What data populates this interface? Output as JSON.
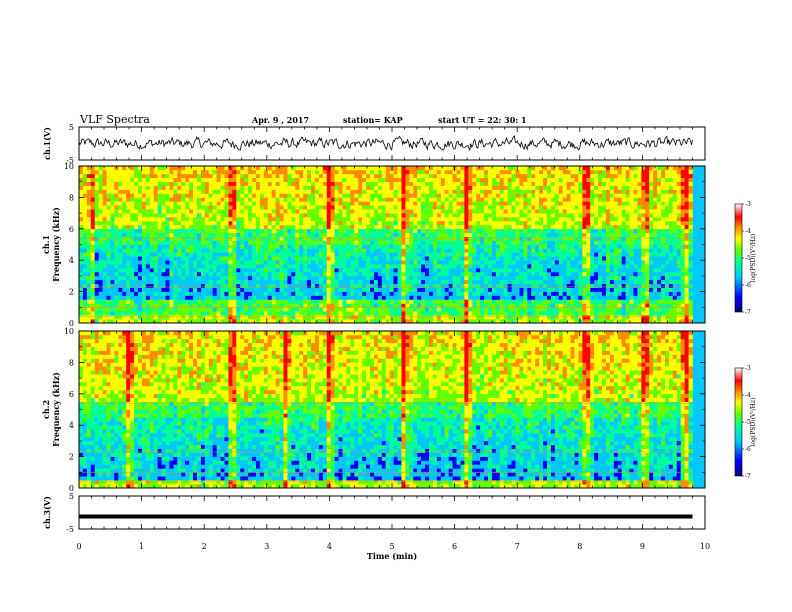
{
  "header": {
    "title": "VLF Spectra",
    "date": "Apr. 9  , 2017",
    "station": "station= KAP",
    "start": "start  UT =   22: 30: 1"
  },
  "colors": {
    "spectrogram_scale": [
      "#00007f",
      "#0000ff",
      "#00c8ff",
      "#00ff96",
      "#64ff00",
      "#ffff00",
      "#ff8c00",
      "#ff0000",
      "#ffffff"
    ],
    "trace": "#000000"
  },
  "chart_data": [
    {
      "name_id": "ch1-waveform",
      "type": "line",
      "ylabel": "ch.1(V)",
      "ylim": [
        -5,
        5
      ],
      "yticks": [
        "5",
        "-5"
      ],
      "xlim": [
        0,
        10
      ],
      "description_values": {
        "baseline_v": 0,
        "fluctuation_v": 1.5
      }
    },
    {
      "name_id": "ch1-spectrogram",
      "type": "heatmap",
      "ylabel": "ch.1\nFrequency  (kHz)",
      "ylim": [
        0,
        10
      ],
      "yticks": [
        "0",
        "2",
        "4",
        "6",
        "8",
        "10"
      ],
      "xlim": [
        0,
        10
      ],
      "colorbar": {
        "label": "log(PSD)(V²/Hz)",
        "ticks": [
          "-3",
          "-4",
          "-5",
          "-6",
          "-7"
        ],
        "range": [
          -7,
          -3
        ]
      },
      "bright_bursts_min": [
        0.2,
        2.45,
        4.0,
        5.2,
        6.2,
        8.1,
        9.05,
        9.7
      ],
      "low_band_khz": [
        1.5,
        5.0
      ]
    },
    {
      "name_id": "ch2-spectrogram",
      "type": "heatmap",
      "ylabel": "ch.2\nFrequency  (kHz)",
      "ylim": [
        0,
        10
      ],
      "yticks": [
        "0",
        "2",
        "4",
        "6",
        "8",
        "10"
      ],
      "xlim": [
        0,
        10
      ],
      "colorbar": {
        "label": "log(PSD)(V²/Hz)",
        "ticks": [
          "-3",
          "-4",
          "-5",
          "-6",
          "-7"
        ],
        "range": [
          -7,
          -3
        ]
      },
      "bright_bursts_min": [
        0.8,
        2.45,
        3.3,
        4.0,
        5.2,
        6.2,
        8.1,
        9.05,
        9.7
      ],
      "low_band_khz": [
        0.5,
        4.5
      ]
    },
    {
      "name_id": "ch3-waveform",
      "type": "line",
      "ylabel": "ch.3(V)",
      "ylim": [
        -5,
        5
      ],
      "yticks": [
        "5",
        "-5"
      ],
      "xlim": [
        0,
        10
      ],
      "description_values": {
        "constant_v": -1.2
      }
    }
  ],
  "xaxis": {
    "label": "Time  (min)",
    "ticks": [
      "0",
      "1",
      "2",
      "3",
      "4",
      "5",
      "6",
      "7",
      "8",
      "9",
      "10"
    ]
  }
}
